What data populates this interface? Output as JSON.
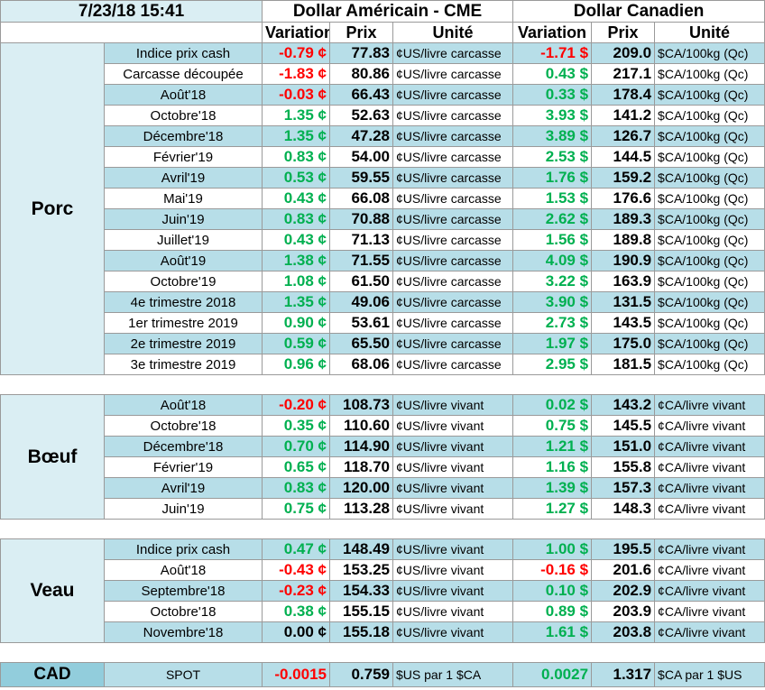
{
  "header": {
    "timestamp": "7/23/18 15:41",
    "usd_title": "Dollar Américain - CME",
    "cad_title": "Dollar Canadien",
    "columns": [
      "Variation",
      "Prix",
      "Unité",
      "Variation",
      "Prix",
      "Unité"
    ]
  },
  "sections": [
    {
      "name": "Porc",
      "rows": [
        [
          "Indice prix cash",
          "-0.79 ¢",
          "77.83",
          "¢US/livre carcasse",
          "-1.71 $",
          "209.0",
          "$CA/100kg (Qc)"
        ],
        [
          "Carcasse découpée",
          "-1.83 ¢",
          "80.86",
          "¢US/livre carcasse",
          "0.43 $",
          "217.1",
          "$CA/100kg (Qc)"
        ],
        [
          "Août'18",
          "-0.03 ¢",
          "66.43",
          "¢US/livre carcasse",
          "0.33 $",
          "178.4",
          "$CA/100kg (Qc)"
        ],
        [
          "Octobre'18",
          "1.35 ¢",
          "52.63",
          "¢US/livre carcasse",
          "3.93 $",
          "141.2",
          "$CA/100kg (Qc)"
        ],
        [
          "Décembre'18",
          "1.35 ¢",
          "47.28",
          "¢US/livre carcasse",
          "3.89 $",
          "126.7",
          "$CA/100kg (Qc)"
        ],
        [
          "Février'19",
          "0.83 ¢",
          "54.00",
          "¢US/livre carcasse",
          "2.53 $",
          "144.5",
          "$CA/100kg (Qc)"
        ],
        [
          "Avril'19",
          "0.53 ¢",
          "59.55",
          "¢US/livre carcasse",
          "1.76 $",
          "159.2",
          "$CA/100kg (Qc)"
        ],
        [
          "Mai'19",
          "0.43 ¢",
          "66.08",
          "¢US/livre carcasse",
          "1.53 $",
          "176.6",
          "$CA/100kg (Qc)"
        ],
        [
          "Juin'19",
          "0.83 ¢",
          "70.88",
          "¢US/livre carcasse",
          "2.62 $",
          "189.3",
          "$CA/100kg (Qc)"
        ],
        [
          "Juillet'19",
          "0.43 ¢",
          "71.13",
          "¢US/livre carcasse",
          "1.56 $",
          "189.8",
          "$CA/100kg (Qc)"
        ],
        [
          "Août'19",
          "1.38 ¢",
          "71.55",
          "¢US/livre carcasse",
          "4.09 $",
          "190.9",
          "$CA/100kg (Qc)"
        ],
        [
          "Octobre'19",
          "1.08 ¢",
          "61.50",
          "¢US/livre carcasse",
          "3.22 $",
          "163.9",
          "$CA/100kg (Qc)"
        ],
        [
          "4e trimestre 2018",
          "1.35 ¢",
          "49.06",
          "¢US/livre carcasse",
          "3.90 $",
          "131.5",
          "$CA/100kg (Qc)"
        ],
        [
          "1er trimestre 2019",
          "0.90 ¢",
          "53.61",
          "¢US/livre carcasse",
          "2.73 $",
          "143.5",
          "$CA/100kg (Qc)"
        ],
        [
          "2e trimestre 2019",
          "0.59 ¢",
          "65.50",
          "¢US/livre carcasse",
          "1.97 $",
          "175.0",
          "$CA/100kg (Qc)"
        ],
        [
          "3e trimestre 2019",
          "0.96 ¢",
          "68.06",
          "¢US/livre carcasse",
          "2.95 $",
          "181.5",
          "$CA/100kg (Qc)"
        ]
      ]
    },
    {
      "name": "Bœuf",
      "rows": [
        [
          "Août'18",
          "-0.20 ¢",
          "108.73",
          "¢US/livre vivant",
          "0.02 $",
          "143.2",
          "¢CA/livre vivant"
        ],
        [
          "Octobre'18",
          "0.35 ¢",
          "110.60",
          "¢US/livre vivant",
          "0.75 $",
          "145.5",
          "¢CA/livre vivant"
        ],
        [
          "Décembre'18",
          "0.70 ¢",
          "114.90",
          "¢US/livre vivant",
          "1.21 $",
          "151.0",
          "¢CA/livre vivant"
        ],
        [
          "Février'19",
          "0.65 ¢",
          "118.70",
          "¢US/livre vivant",
          "1.16 $",
          "155.8",
          "¢CA/livre vivant"
        ],
        [
          "Avril'19",
          "0.83 ¢",
          "120.00",
          "¢US/livre vivant",
          "1.39 $",
          "157.3",
          "¢CA/livre vivant"
        ],
        [
          "Juin'19",
          "0.75 ¢",
          "113.28",
          "¢US/livre vivant",
          "1.27 $",
          "148.3",
          "¢CA/livre vivant"
        ]
      ]
    },
    {
      "name": "Veau",
      "rows": [
        [
          "Indice prix cash",
          "0.47 ¢",
          "148.49",
          "¢US/livre vivant",
          "1.00 $",
          "195.5",
          "¢CA/livre vivant"
        ],
        [
          "Août'18",
          "-0.43 ¢",
          "153.25",
          "¢US/livre vivant",
          "-0.16 $",
          "201.6",
          "¢CA/livre vivant"
        ],
        [
          "Septembre'18",
          "-0.23 ¢",
          "154.33",
          "¢US/livre vivant",
          "0.10 $",
          "202.9",
          "¢CA/livre vivant"
        ],
        [
          "Octobre'18",
          "0.38 ¢",
          "155.15",
          "¢US/livre vivant",
          "0.89 $",
          "203.9",
          "¢CA/livre vivant"
        ],
        [
          "Novembre'18",
          "0.00 ¢",
          "155.18",
          "¢US/livre vivant",
          "1.61 $",
          "203.8",
          "¢CA/livre vivant"
        ]
      ]
    },
    {
      "name": "CAD",
      "rows": [
        [
          "SPOT",
          "-0.0015",
          "0.759",
          "$US par 1 $CA",
          "0.0027",
          "1.317",
          "$CA par 1 $US"
        ]
      ]
    }
  ]
}
